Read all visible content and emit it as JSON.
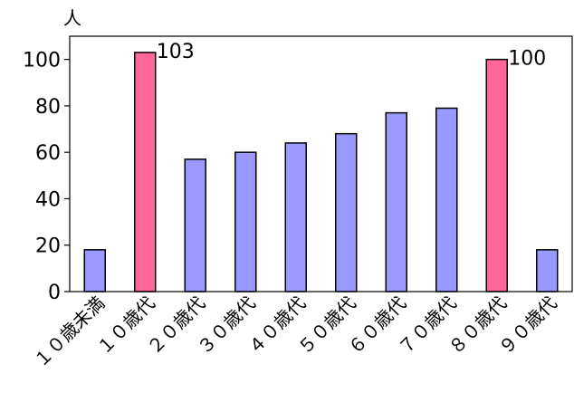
{
  "chart_data": {
    "type": "bar",
    "y_unit_label": "人",
    "categories": [
      "１０歳未満",
      "１０歳代",
      "２０歳代",
      "３０歳代",
      "４０歳代",
      "５０歳代",
      "６０歳代",
      "７０歳代",
      "８０歳代",
      "９０歳代"
    ],
    "values": [
      18,
      103,
      57,
      60,
      64,
      68,
      77,
      79,
      100,
      18
    ],
    "highlighted": [
      false,
      true,
      false,
      false,
      false,
      false,
      false,
      false,
      true,
      false
    ],
    "data_labels": [
      "",
      "103",
      "",
      "",
      "",
      "",
      "",
      "",
      "100",
      ""
    ],
    "ylim": [
      0,
      110
    ],
    "yticks": [
      0,
      20,
      40,
      60,
      80,
      100
    ],
    "grid": false,
    "colors": {
      "bar": "#9999ff",
      "highlight": "#ff6699",
      "bar_border": "#000000"
    }
  }
}
